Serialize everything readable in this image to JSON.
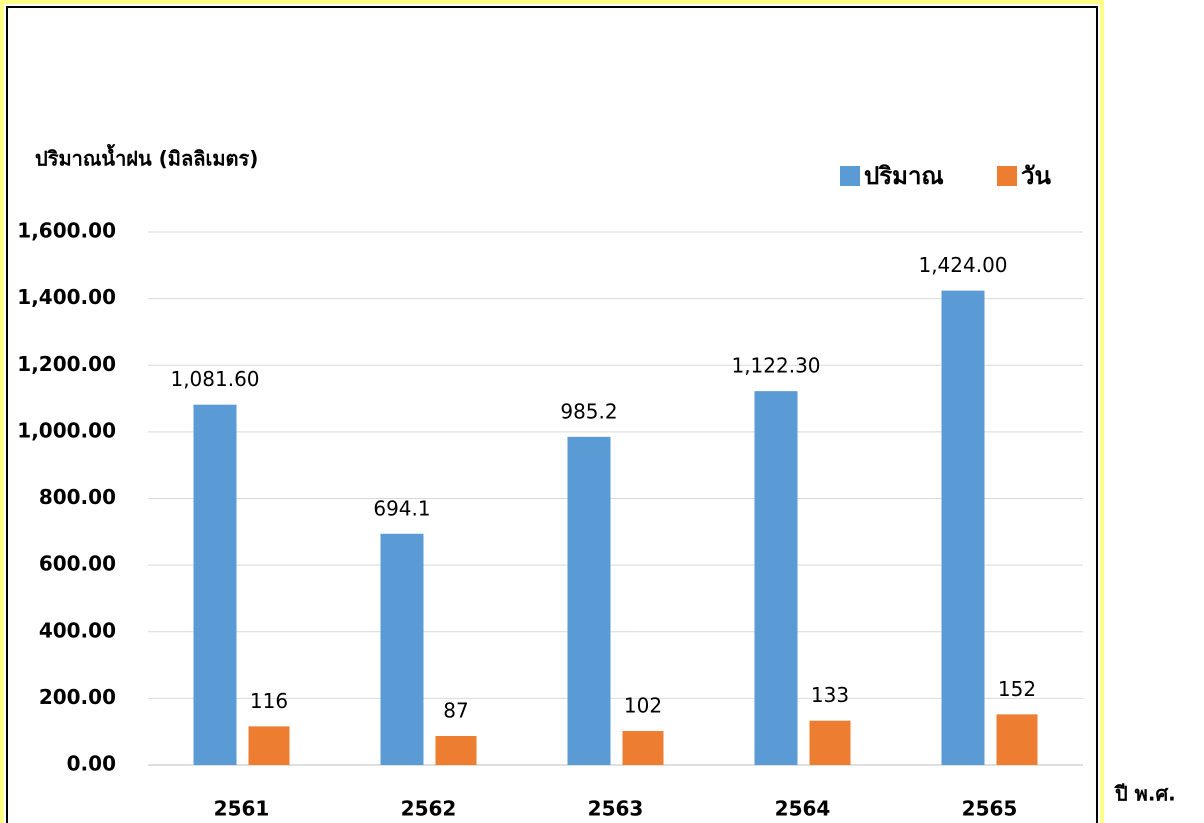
{
  "chart_data": {
    "type": "bar",
    "y_label": "ปริมาณน้ำฝน (มิลลิเมตร)",
    "x_label": "ปี พ.ศ.",
    "categories": [
      "2561",
      "2562",
      "2563",
      "2564",
      "2565"
    ],
    "series": [
      {
        "name": "ปริมาณ",
        "color": "#5b9bd5",
        "values": [
          1081.6,
          694.1,
          985.2,
          1122.3,
          1424.0
        ],
        "value_labels": [
          "1,081.60",
          "694.1",
          "985.2",
          "1,122.30",
          "1,424.00"
        ]
      },
      {
        "name": "วัน",
        "color": "#ed7d31",
        "values": [
          116,
          87,
          102,
          133,
          152
        ]
      }
    ],
    "ylim": [
      0,
      1600
    ],
    "yticks": [
      {
        "value": 0,
        "label": "0.00"
      },
      {
        "value": 200,
        "label": "200.00"
      },
      {
        "value": 400,
        "label": "400.00"
      },
      {
        "value": 600,
        "label": "600.00"
      },
      {
        "value": 800,
        "label": "800.00"
      },
      {
        "value": 1000,
        "label": "1,000.00"
      },
      {
        "value": 1200,
        "label": "1,200.00"
      },
      {
        "value": 1400,
        "label": "1,400.00"
      },
      {
        "value": 1600,
        "label": "1,600.00"
      }
    ],
    "grid": true,
    "legend": "upper right"
  }
}
